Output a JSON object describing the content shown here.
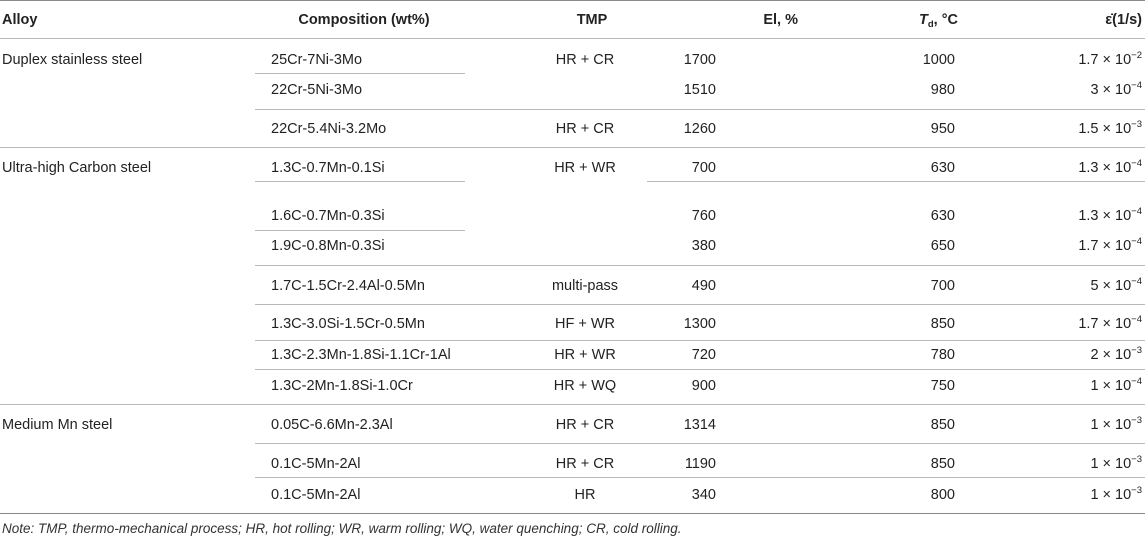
{
  "headers": {
    "alloy": "Alloy",
    "composition": "Composition (wt%)",
    "tmp": "TMP",
    "el": "El, %",
    "td_symbol": "T",
    "td_sub": "d",
    "td_unit": ", °C",
    "rate": "ε̇(1/s)"
  },
  "alloys": [
    {
      "name": "Duplex stainless steel"
    },
    {
      "name": "Ultra-high Carbon steel"
    },
    {
      "name": "Medium Mn steel"
    }
  ],
  "rows": [
    {
      "composition": "25Cr-7Ni-3Mo",
      "tmp": "HR + CR",
      "el": "1700",
      "td": "1000",
      "rate_mant": "1.7 × 10",
      "rate_exp": "−2"
    },
    {
      "composition": "22Cr-5Ni-3Mo",
      "tmp": "",
      "el": "1510",
      "td": "980",
      "rate_mant": "3 × 10",
      "rate_exp": "−4"
    },
    {
      "composition": "22Cr-5.4Ni-3.2Mo",
      "tmp": "HR + CR",
      "el": "1260",
      "td": "950",
      "rate_mant": "1.5 × 10",
      "rate_exp": "−3"
    },
    {
      "composition": "1.3C-0.7Mn-0.1Si",
      "tmp": "HR + WR",
      "el": "700",
      "td": "630",
      "rate_mant": "1.3 × 10",
      "rate_exp": "−4"
    },
    {
      "composition": "1.6C-0.7Mn-0.3Si",
      "tmp": "",
      "el": "760",
      "td": "630",
      "rate_mant": "1.3 × 10",
      "rate_exp": "−4"
    },
    {
      "composition": "1.9C-0.8Mn-0.3Si",
      "tmp": "",
      "el": "380",
      "td": "650",
      "rate_mant": "1.7 × 10",
      "rate_exp": "−4"
    },
    {
      "composition": "1.7C-1.5Cr-2.4Al-0.5Mn",
      "tmp": "multi-pass",
      "el": "490",
      "td": "700",
      "rate_mant": "5 × 10",
      "rate_exp": "−4"
    },
    {
      "composition": "1.3C-3.0Si-1.5Cr-0.5Mn",
      "tmp": "HF + WR",
      "el": "1300",
      "td": "850",
      "rate_mant": "1.7 × 10",
      "rate_exp": "−4"
    },
    {
      "composition": "1.3C-2.3Mn-1.8Si-1.1Cr-1Al",
      "tmp": "HR + WR",
      "el": "720",
      "td": "780",
      "rate_mant": "2 × 10",
      "rate_exp": "−3"
    },
    {
      "composition": "1.3C-2Mn-1.8Si-1.0Cr",
      "tmp": "HR + WQ",
      "el": "900",
      "td": "750",
      "rate_mant": "1 × 10",
      "rate_exp": "−4"
    },
    {
      "composition": "0.05C-6.6Mn-2.3Al",
      "tmp": "HR + CR",
      "el": "1314",
      "td": "850",
      "rate_mant": "1 × 10",
      "rate_exp": "−3"
    },
    {
      "composition": "0.1C-5Mn-2Al",
      "tmp": "HR + CR",
      "el": "1190",
      "td": "850",
      "rate_mant": "1 × 10",
      "rate_exp": "−3"
    },
    {
      "composition": "0.1C-5Mn-2Al",
      "tmp": "HR",
      "el": "340",
      "td": "800",
      "rate_mant": "1 × 10",
      "rate_exp": "−3"
    }
  ],
  "note": "Note: TMP, thermo-mechanical process; HR, hot rolling; WR, warm rolling; WQ, water quenching; CR, cold rolling."
}
